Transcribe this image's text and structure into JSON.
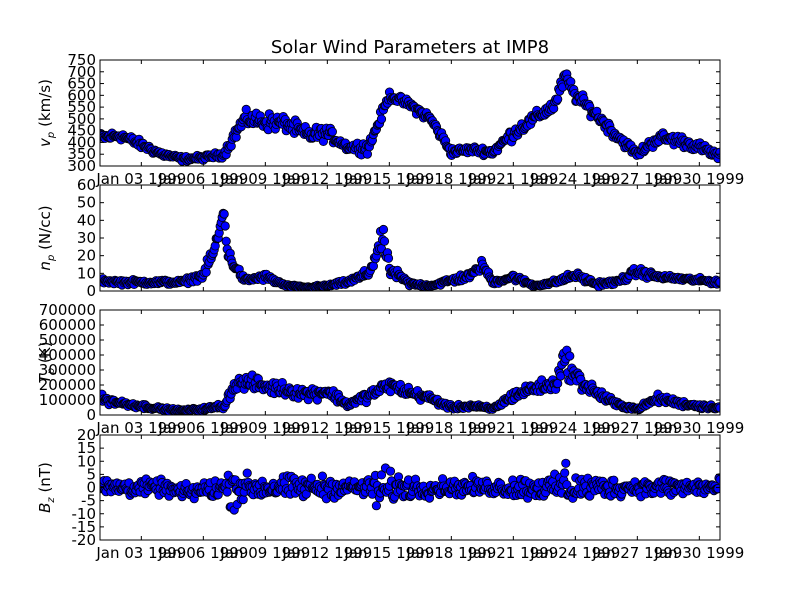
{
  "figure": {
    "title": "Solar Wind Parameters at IMP8"
  },
  "style": {
    "marker_fill": "#0000ff",
    "marker_edge": "#000000",
    "axes_color": "#000000",
    "background": "#ffffff"
  },
  "x_tick_labels": [
    "Jan 03 1999",
    "Jan 06 1999",
    "Jan 09 1999",
    "Jan 12 1999",
    "Jan 15 1999",
    "Jan 18 1999",
    "Jan 21 1999",
    "Jan 24 1999",
    "Jan 27 1999",
    "Jan 30 1999"
  ],
  "chart_data": [
    {
      "type": "scatter",
      "title": "Solar Wind Parameters at IMP8",
      "ylabel": "v_p (km/s)",
      "ylabel_symbol": "v",
      "ylabel_sub": "p",
      "ylabel_unit": "(km/s)",
      "xlim": [
        1,
        31
      ],
      "ylim": [
        300,
        750
      ],
      "yticks": [
        300,
        350,
        400,
        450,
        500,
        550,
        600,
        650,
        700,
        750
      ],
      "xticks": [
        3,
        6,
        9,
        12,
        15,
        18,
        21,
        24,
        27,
        30
      ],
      "series": [
        {
          "x": [
            1,
            2,
            3,
            4,
            5,
            6,
            7,
            7.5,
            8,
            9,
            10,
            11,
            12,
            13,
            14,
            15,
            16,
            17,
            18,
            19,
            20,
            21,
            22,
            23,
            23.5,
            24,
            25,
            26,
            27,
            28,
            29,
            30,
            31
          ],
          "y": [
            420,
            430,
            390,
            350,
            330,
            335,
            350,
            430,
            500,
            490,
            480,
            430,
            440,
            380,
            380,
            600,
            560,
            500,
            360,
            370,
            360,
            440,
            500,
            560,
            680,
            600,
            520,
            430,
            350,
            420,
            410,
            380,
            340
          ],
          "spread": [
            30,
            30,
            25,
            20,
            15,
            15,
            20,
            40,
            45,
            55,
            45,
            50,
            40,
            25,
            40,
            25,
            25,
            30,
            25,
            20,
            25,
            40,
            35,
            40,
            45,
            40,
            35,
            35,
            20,
            40,
            35,
            30,
            25
          ]
        }
      ]
    },
    {
      "type": "scatter",
      "ylabel": "n_p (N/cc)",
      "ylabel_symbol": "n",
      "ylabel_sub": "p",
      "ylabel_unit": "(N/cc)",
      "xlim": [
        1,
        31
      ],
      "ylim": [
        0,
        60
      ],
      "yticks": [
        0,
        10,
        20,
        30,
        40,
        50,
        60
      ],
      "xticks": [
        3,
        6,
        9,
        12,
        15,
        18,
        21,
        24,
        27,
        30
      ],
      "series": [
        {
          "x": [
            1,
            2,
            3,
            4,
            5,
            6,
            6.6,
            7,
            7.2,
            8,
            9,
            10,
            11,
            12,
            13,
            14,
            14.7,
            15,
            16,
            17,
            18,
            19,
            19.5,
            20,
            21,
            22,
            23,
            24,
            25,
            26,
            27,
            28,
            29,
            30,
            31
          ],
          "y": [
            6,
            5,
            5,
            5,
            5,
            9,
            25,
            45,
            20,
            6,
            8,
            3,
            2,
            3,
            5,
            10,
            30,
            12,
            4,
            3,
            6,
            9,
            15,
            5,
            8,
            3,
            5,
            9,
            4,
            5,
            11,
            8,
            7,
            6,
            5
          ],
          "spread": [
            2,
            2,
            2,
            2,
            2,
            3,
            8,
            8,
            6,
            2,
            3,
            1,
            1,
            1,
            2,
            4,
            10,
            5,
            2,
            1,
            3,
            3,
            4,
            2,
            3,
            1,
            2,
            3,
            2,
            2,
            4,
            2,
            2,
            2,
            2
          ]
        }
      ]
    },
    {
      "type": "scatter",
      "ylabel": "T_p (K)",
      "ylabel_symbol": "T",
      "ylabel_sub": "p",
      "ylabel_unit": "(K)",
      "xlim": [
        1,
        31
      ],
      "ylim": [
        0,
        700000
      ],
      "yticks": [
        0,
        100000,
        200000,
        300000,
        400000,
        500000,
        600000,
        700000
      ],
      "xticks": [
        3,
        6,
        9,
        12,
        15,
        18,
        21,
        24,
        27,
        30
      ],
      "series": [
        {
          "x": [
            1,
            2,
            3,
            4,
            5,
            6,
            7,
            7.5,
            8,
            9,
            10,
            11,
            12,
            13,
            14,
            15,
            16,
            17,
            18,
            19,
            20,
            21,
            22,
            23,
            23.5,
            24,
            25,
            26,
            27,
            28,
            29,
            30,
            31
          ],
          "y": [
            110000,
            80000,
            60000,
            40000,
            30000,
            40000,
            60000,
            200000,
            220000,
            190000,
            170000,
            140000,
            160000,
            70000,
            130000,
            200000,
            150000,
            110000,
            50000,
            60000,
            40000,
            130000,
            180000,
            200000,
            380000,
            250000,
            150000,
            70000,
            40000,
            110000,
            80000,
            60000,
            50000
          ],
          "spread": [
            40000,
            30000,
            25000,
            15000,
            10000,
            15000,
            30000,
            60000,
            70000,
            70000,
            60000,
            60000,
            60000,
            30000,
            50000,
            60000,
            50000,
            40000,
            20000,
            25000,
            15000,
            50000,
            60000,
            70000,
            140000,
            90000,
            60000,
            30000,
            15000,
            40000,
            30000,
            25000,
            20000
          ]
        }
      ]
    },
    {
      "type": "scatter",
      "ylabel": "B_z (nT)",
      "ylabel_symbol": "B",
      "ylabel_sub": "z",
      "ylabel_unit": "(nT)",
      "xlim": [
        1,
        31
      ],
      "ylim": [
        -20,
        20
      ],
      "yticks": [
        -20,
        -15,
        -10,
        -5,
        0,
        5,
        10,
        15,
        20
      ],
      "xticks": [
        3,
        6,
        9,
        12,
        15,
        18,
        21,
        24,
        27,
        30
      ],
      "series": [
        {
          "x": [
            1,
            2,
            3,
            4,
            5,
            6,
            7,
            7.5,
            8,
            9,
            10,
            11,
            12,
            13,
            14,
            14.5,
            15,
            16,
            17,
            18,
            19,
            20,
            21,
            22,
            23,
            23.5,
            24,
            25,
            26,
            27,
            28,
            29,
            30,
            31
          ],
          "y": [
            0,
            0,
            0,
            0,
            -2,
            -1,
            0,
            0,
            0,
            0,
            0,
            0,
            0,
            0,
            0,
            -1,
            0,
            0,
            0,
            0,
            0,
            0,
            0,
            0,
            0,
            1,
            0,
            0,
            0,
            0,
            0,
            0,
            0,
            0
          ],
          "spread": [
            5,
            5,
            4,
            4,
            4,
            5,
            6,
            12,
            7,
            7,
            6,
            6,
            6,
            4,
            5,
            16,
            8,
            6,
            5,
            4,
            5,
            4,
            6,
            6,
            6,
            15,
            8,
            6,
            5,
            4,
            6,
            5,
            5,
            5
          ]
        }
      ]
    }
  ]
}
